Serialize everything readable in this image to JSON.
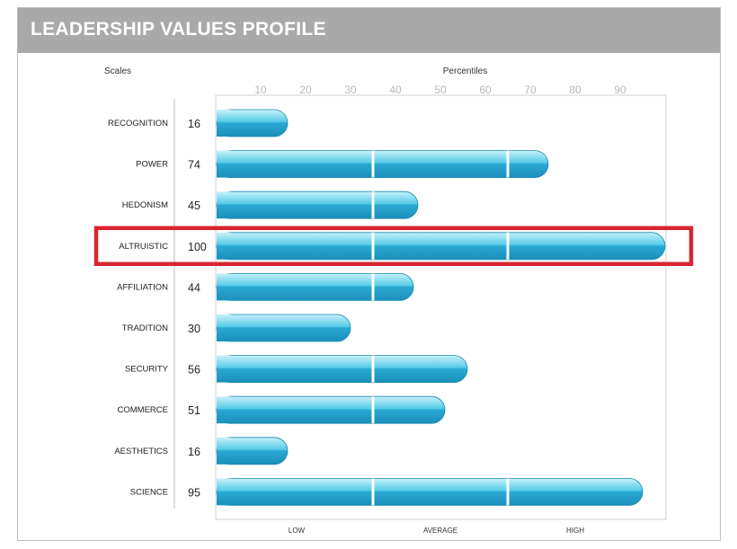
{
  "header": {
    "title": "LEADERSHIP VALUES PROFILE"
  },
  "chart_data": {
    "type": "bar",
    "orientation": "horizontal",
    "title": "LEADERSHIP VALUES PROFILE",
    "scales_label": "Scales",
    "percentiles_label": "Percentiles",
    "categories": [
      "RECOGNITION",
      "POWER",
      "HEDONISM",
      "ALTRUISTIC",
      "AFFILIATION",
      "TRADITION",
      "SECURITY",
      "COMMERCE",
      "AESTHETICS",
      "SCIENCE"
    ],
    "values": [
      16,
      74,
      45,
      100,
      44,
      30,
      56,
      51,
      16,
      95
    ],
    "value_labels": [
      "16",
      "74",
      "45",
      "100",
      "44",
      "30",
      "56",
      "51",
      "16",
      "95"
    ],
    "x_ticks": [
      10,
      20,
      30,
      40,
      50,
      60,
      70,
      80,
      90
    ],
    "xlim": [
      0,
      100
    ],
    "band_labels": [
      "LOW",
      "AVERAGE",
      "HIGH"
    ],
    "band_edges": [
      35,
      65
    ],
    "highlighted_category": "ALTRUISTIC",
    "colors": {
      "bar_light": "#9fe3f2",
      "bar_mid": "#3cbfe0",
      "bar_dark": "#1b95bf",
      "highlight": "#d7252f",
      "header_bg": "#a9a9a9"
    }
  }
}
